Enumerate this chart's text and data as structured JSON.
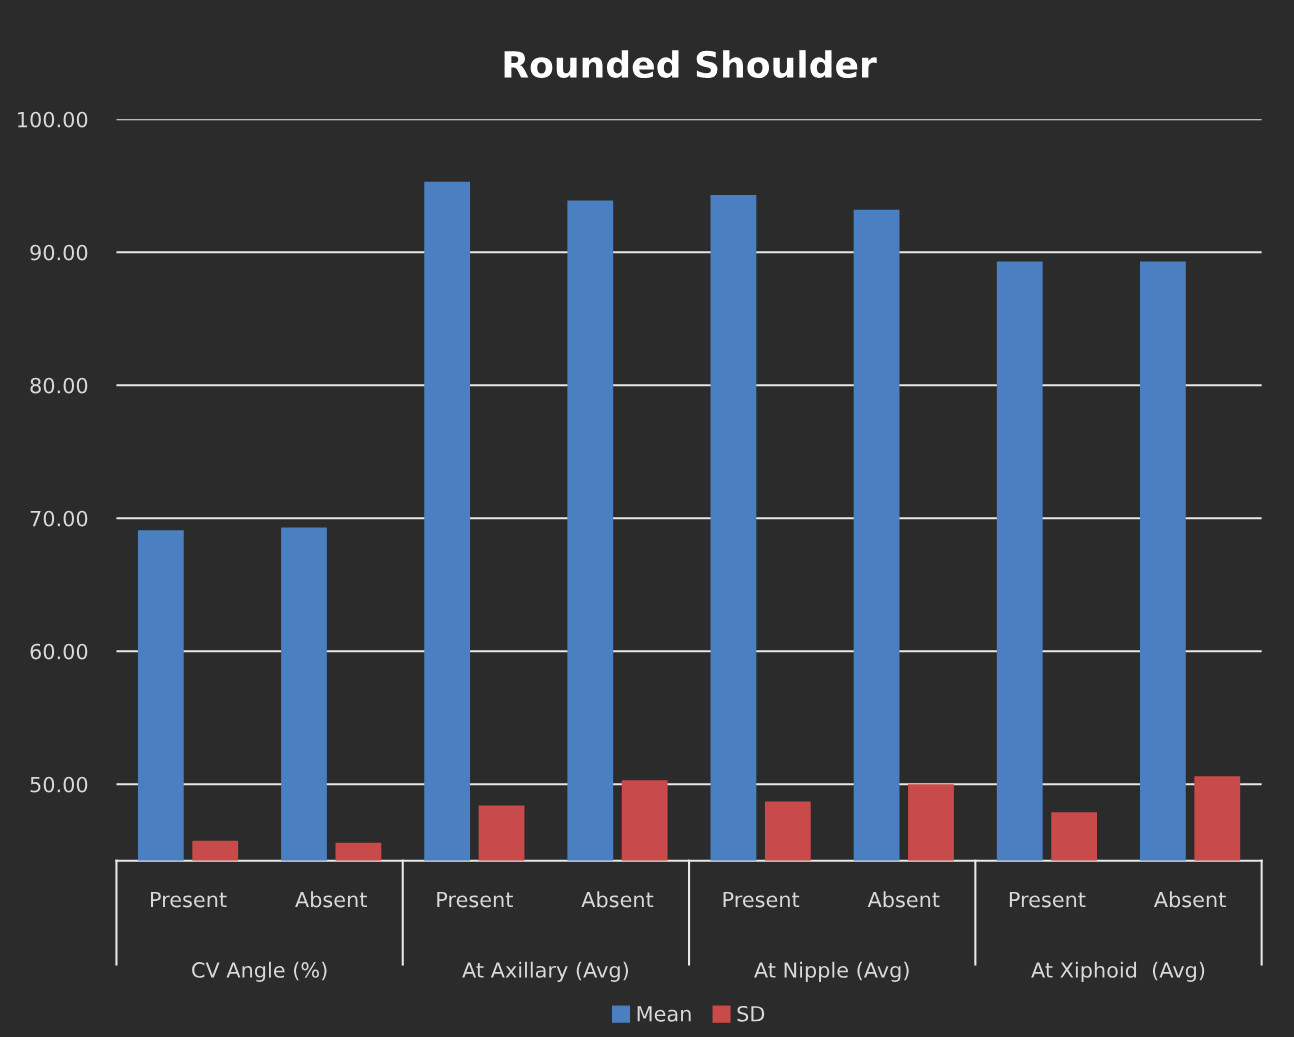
{
  "chart_data": {
    "type": "bar",
    "title": "Rounded Shoulder",
    "categories": [
      "Present",
      "Absent",
      "Present",
      "Absent",
      "Present",
      "Absent",
      "Present",
      "Absent"
    ],
    "series": [
      {
        "name": "Mean",
        "color": "#4a7fc1",
        "values": [
          69.1,
          69.3,
          95.3,
          93.9,
          94.3,
          93.2,
          89.3,
          89.3
        ]
      },
      {
        "name": "SD",
        "color": "#c94a4a",
        "values": [
          45.75,
          45.6,
          48.4,
          50.3,
          48.7,
          50.0,
          47.9,
          50.6
        ]
      }
    ],
    "annotations": [
      "CV Angle (%)",
      "At Axillary (Avg)",
      "At Nipple (Avg)",
      "At Xiphoid  (Avg)"
    ],
    "ylim": [
      44.25,
      100
    ],
    "yticks": [
      {
        "value": 50,
        "label": "50.00"
      },
      {
        "value": 60,
        "label": "60.00"
      },
      {
        "value": 70,
        "label": "70.00"
      },
      {
        "value": 80,
        "label": "80.00"
      },
      {
        "value": 90,
        "label": "90.00"
      },
      {
        "value": 100,
        "label": "100.00"
      }
    ],
    "grid": "y",
    "legend": "bottom"
  }
}
